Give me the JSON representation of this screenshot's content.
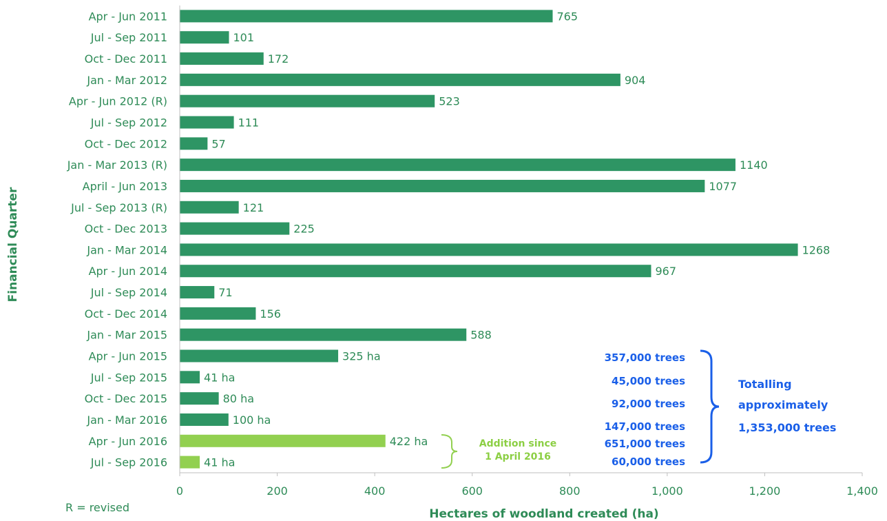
{
  "chart_data": {
    "type": "bar",
    "orientation": "horizontal",
    "categories": [
      "Apr - Jun 2011",
      "Jul - Sep  2011",
      "Oct - Dec 2011",
      "Jan - Mar 2012",
      "Apr - Jun 2012 (R)",
      "Jul - Sep 2012",
      "Oct - Dec 2012",
      "Jan - Mar 2013 (R)",
      "April - Jun 2013",
      "Jul - Sep 2013 (R)",
      "Oct - Dec 2013",
      "Jan - Mar 2014",
      "Apr - Jun 2014",
      "Jul - Sep 2014",
      "Oct - Dec 2014",
      "Jan - Mar 2015",
      "Apr - Jun 2015",
      "Jul - Sep 2015",
      "Oct - Dec 2015",
      "Jan - Mar 2016",
      "Apr - Jun 2016",
      "Jul - Sep 2016"
    ],
    "values": [
      765,
      101,
      172,
      904,
      523,
      111,
      57,
      1140,
      1077,
      121,
      225,
      1268,
      967,
      71,
      156,
      588,
      325,
      41,
      80,
      100,
      422,
      41
    ],
    "value_labels": [
      "765",
      "101",
      "172",
      "904",
      "523",
      "111",
      "57",
      "1140",
      "1077",
      "121",
      "225",
      "1268",
      "967",
      "71",
      "156",
      "588",
      "325 ha",
      "41 ha",
      "80 ha",
      "100 ha",
      "422 ha",
      "41 ha"
    ],
    "highlight_from_index": 20,
    "colors": {
      "main": "#2e9564",
      "highlight": "#92d050",
      "text": "#2e8b57",
      "annotation": "#1a5fe8"
    },
    "xlabel": "Hectares of woodland created (ha)",
    "ylabel": "Financial  Quarter",
    "xlim": [
      0,
      1400
    ],
    "xticks": [
      0,
      200,
      400,
      600,
      800,
      1000,
      1200,
      1400
    ],
    "xtick_labels": [
      "0",
      "200",
      "400",
      "600",
      "800",
      "1,000",
      "1,200",
      "1,400"
    ],
    "grid": false,
    "annotations": {
      "trees": [
        "357,000 trees",
        "45,000 trees",
        "92,000 trees",
        "147,000 trees",
        "651,000 trees",
        "60,000 trees"
      ],
      "total": [
        "Totalling",
        "approximately",
        "1,353,000  trees"
      ],
      "addition": [
        "Addition  since",
        "1 April  2016"
      ],
      "note": "R = revised"
    }
  }
}
